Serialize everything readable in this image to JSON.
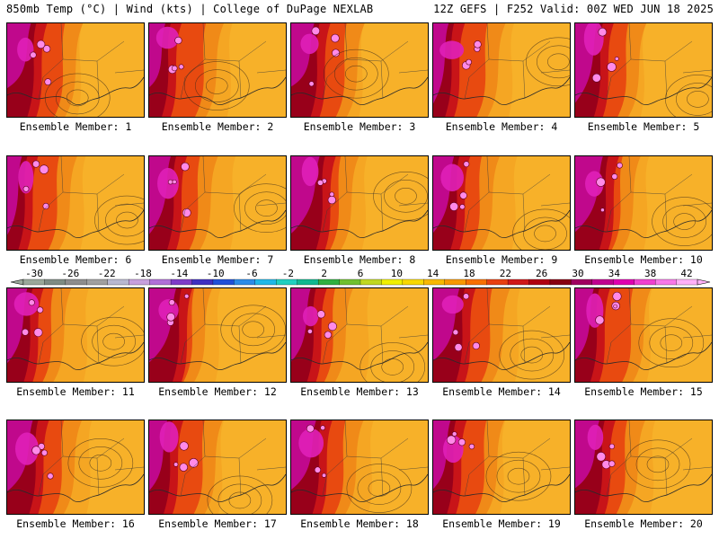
{
  "header": {
    "left": "850mb Temp (°C) | Wind (kts) | College of DuPage NEXLAB",
    "right": "12Z GEFS | F252 Valid: 00Z WED JUN 18 2025"
  },
  "panels": [
    {
      "label": "Ensemble Member: 1"
    },
    {
      "label": "Ensemble Member: 2"
    },
    {
      "label": "Ensemble Member: 3"
    },
    {
      "label": "Ensemble Member: 4"
    },
    {
      "label": "Ensemble Member: 5"
    },
    {
      "label": "Ensemble Member: 6"
    },
    {
      "label": "Ensemble Member: 7"
    },
    {
      "label": "Ensemble Member: 8"
    },
    {
      "label": "Ensemble Member: 9"
    },
    {
      "label": "Ensemble Member: 10"
    },
    {
      "label": "Ensemble Member: 11"
    },
    {
      "label": "Ensemble Member: 12"
    },
    {
      "label": "Ensemble Member: 13"
    },
    {
      "label": "Ensemble Member: 14"
    },
    {
      "label": "Ensemble Member: 15"
    },
    {
      "label": "Ensemble Member: 16"
    },
    {
      "label": "Ensemble Member: 17"
    },
    {
      "label": "Ensemble Member: 18"
    },
    {
      "label": "Ensemble Member: 19"
    },
    {
      "label": "Ensemble Member: 20"
    }
  ],
  "colorbar": {
    "tick_labels": [
      "-30",
      "-26",
      "-22",
      "-18",
      "-14",
      "-10",
      "-6",
      "-2",
      "2",
      "6",
      "10",
      "14",
      "18",
      "22",
      "26",
      "30",
      "34",
      "38",
      "42"
    ],
    "colors": [
      "#9aa89a",
      "#7e8c84",
      "#8d8d8d",
      "#a0a0a0",
      "#b8b8d0",
      "#c7a0dd",
      "#b070d8",
      "#7e3cc8",
      "#3f2fc0",
      "#2050d8",
      "#2c8ce8",
      "#20b8e8",
      "#20d0c0",
      "#10b890",
      "#30b040",
      "#70c030",
      "#c0d820",
      "#f0f000",
      "#f8d800",
      "#f8b800",
      "#f89800",
      "#f87000",
      "#e84010",
      "#d01818",
      "#b00010",
      "#880010",
      "#a00060",
      "#c00090",
      "#e000b0",
      "#f040d0",
      "#f878e8",
      "#ffb0f8"
    ]
  }
}
